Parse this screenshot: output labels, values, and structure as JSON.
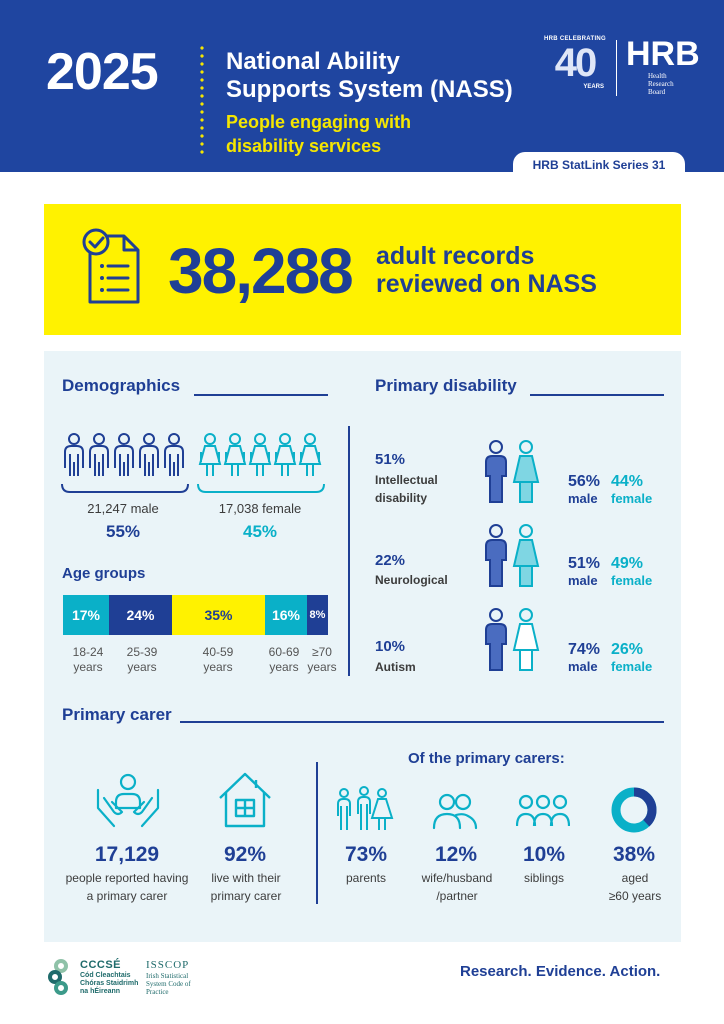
{
  "header": {
    "year": "2025",
    "title_line1": "National Ability",
    "title_line2": "Supports System (NASS)",
    "subtitle_line1": "People engaging with",
    "subtitle_line2": "disability services",
    "celebrating": "HRB CELEBRATING",
    "celebrating_number": "40",
    "celebrating_years": "YEARS",
    "logo_text": "HRB",
    "logo_name_line1": "Health",
    "logo_name_line2": "Research",
    "logo_name_line3": "Board",
    "series": "HRB StatLink Series 31"
  },
  "banner": {
    "number": "38,288",
    "text_line1": "adult records",
    "text_line2": "reviewed on NASS"
  },
  "demographics": {
    "title": "Demographics",
    "male_count": "21,247 male",
    "male_pct": "55%",
    "female_count": "17,038 female",
    "female_pct": "45%"
  },
  "age_groups": {
    "title": "Age groups",
    "groups": [
      {
        "pct": "17%",
        "line1": "18-24",
        "line2": "years"
      },
      {
        "pct": "24%",
        "line1": "25-39",
        "line2": "years"
      },
      {
        "pct": "35%",
        "line1": "40-59",
        "line2": "years"
      },
      {
        "pct": "16%",
        "line1": "60-69",
        "line2": "years"
      },
      {
        "pct": "8%",
        "line1": "≥70",
        "line2": "years"
      }
    ]
  },
  "primary_disability": {
    "title": "Primary disability",
    "items": [
      {
        "pct": "51%",
        "name_line1": "Intellectual",
        "name_line2": "disability",
        "male_pct": "56%",
        "female_pct": "44%"
      },
      {
        "pct": "22%",
        "name_line1": "Neurological",
        "name_line2": "",
        "male_pct": "51%",
        "female_pct": "49%"
      },
      {
        "pct": "10%",
        "name_line1": "Autism",
        "name_line2": "",
        "male_pct": "74%",
        "female_pct": "26%"
      }
    ],
    "male_label": "male",
    "female_label": "female"
  },
  "primary_carer": {
    "title": "Primary carer",
    "reported_num": "17,129",
    "reported_line1": "people reported having",
    "reported_line2": "a primary carer",
    "live_num": "92%",
    "live_line1": "live with their",
    "live_line2": "primary carer",
    "of_title": "Of the primary carers:",
    "parents_num": "73%",
    "parents_lbl": "parents",
    "spouse_num": "12%",
    "spouse_line1": "wife/husband",
    "spouse_line2": "/partner",
    "siblings_num": "10%",
    "siblings_lbl": "siblings",
    "aged_num": "38%",
    "aged_line1": "aged",
    "aged_line2": "≥60 years",
    "aged_fraction": 0.38
  },
  "footer": {
    "cccse": "CCCSÉ",
    "cccse_line1": "Cód Cleachtais",
    "cccse_line2": "Chóras Staidrimh",
    "cccse_line3": "na hÉireann",
    "isscop": "ISSCOP",
    "isscop_line1": "Irish Statistical",
    "isscop_line2": "System Code of",
    "isscop_line3": "Practice",
    "tagline": "Research. Evidence. Action."
  },
  "colors": {
    "navy": "#1f45a0",
    "dark_blue": "#1f3f95",
    "teal": "#0ab0c8",
    "yellow": "#fff200"
  }
}
